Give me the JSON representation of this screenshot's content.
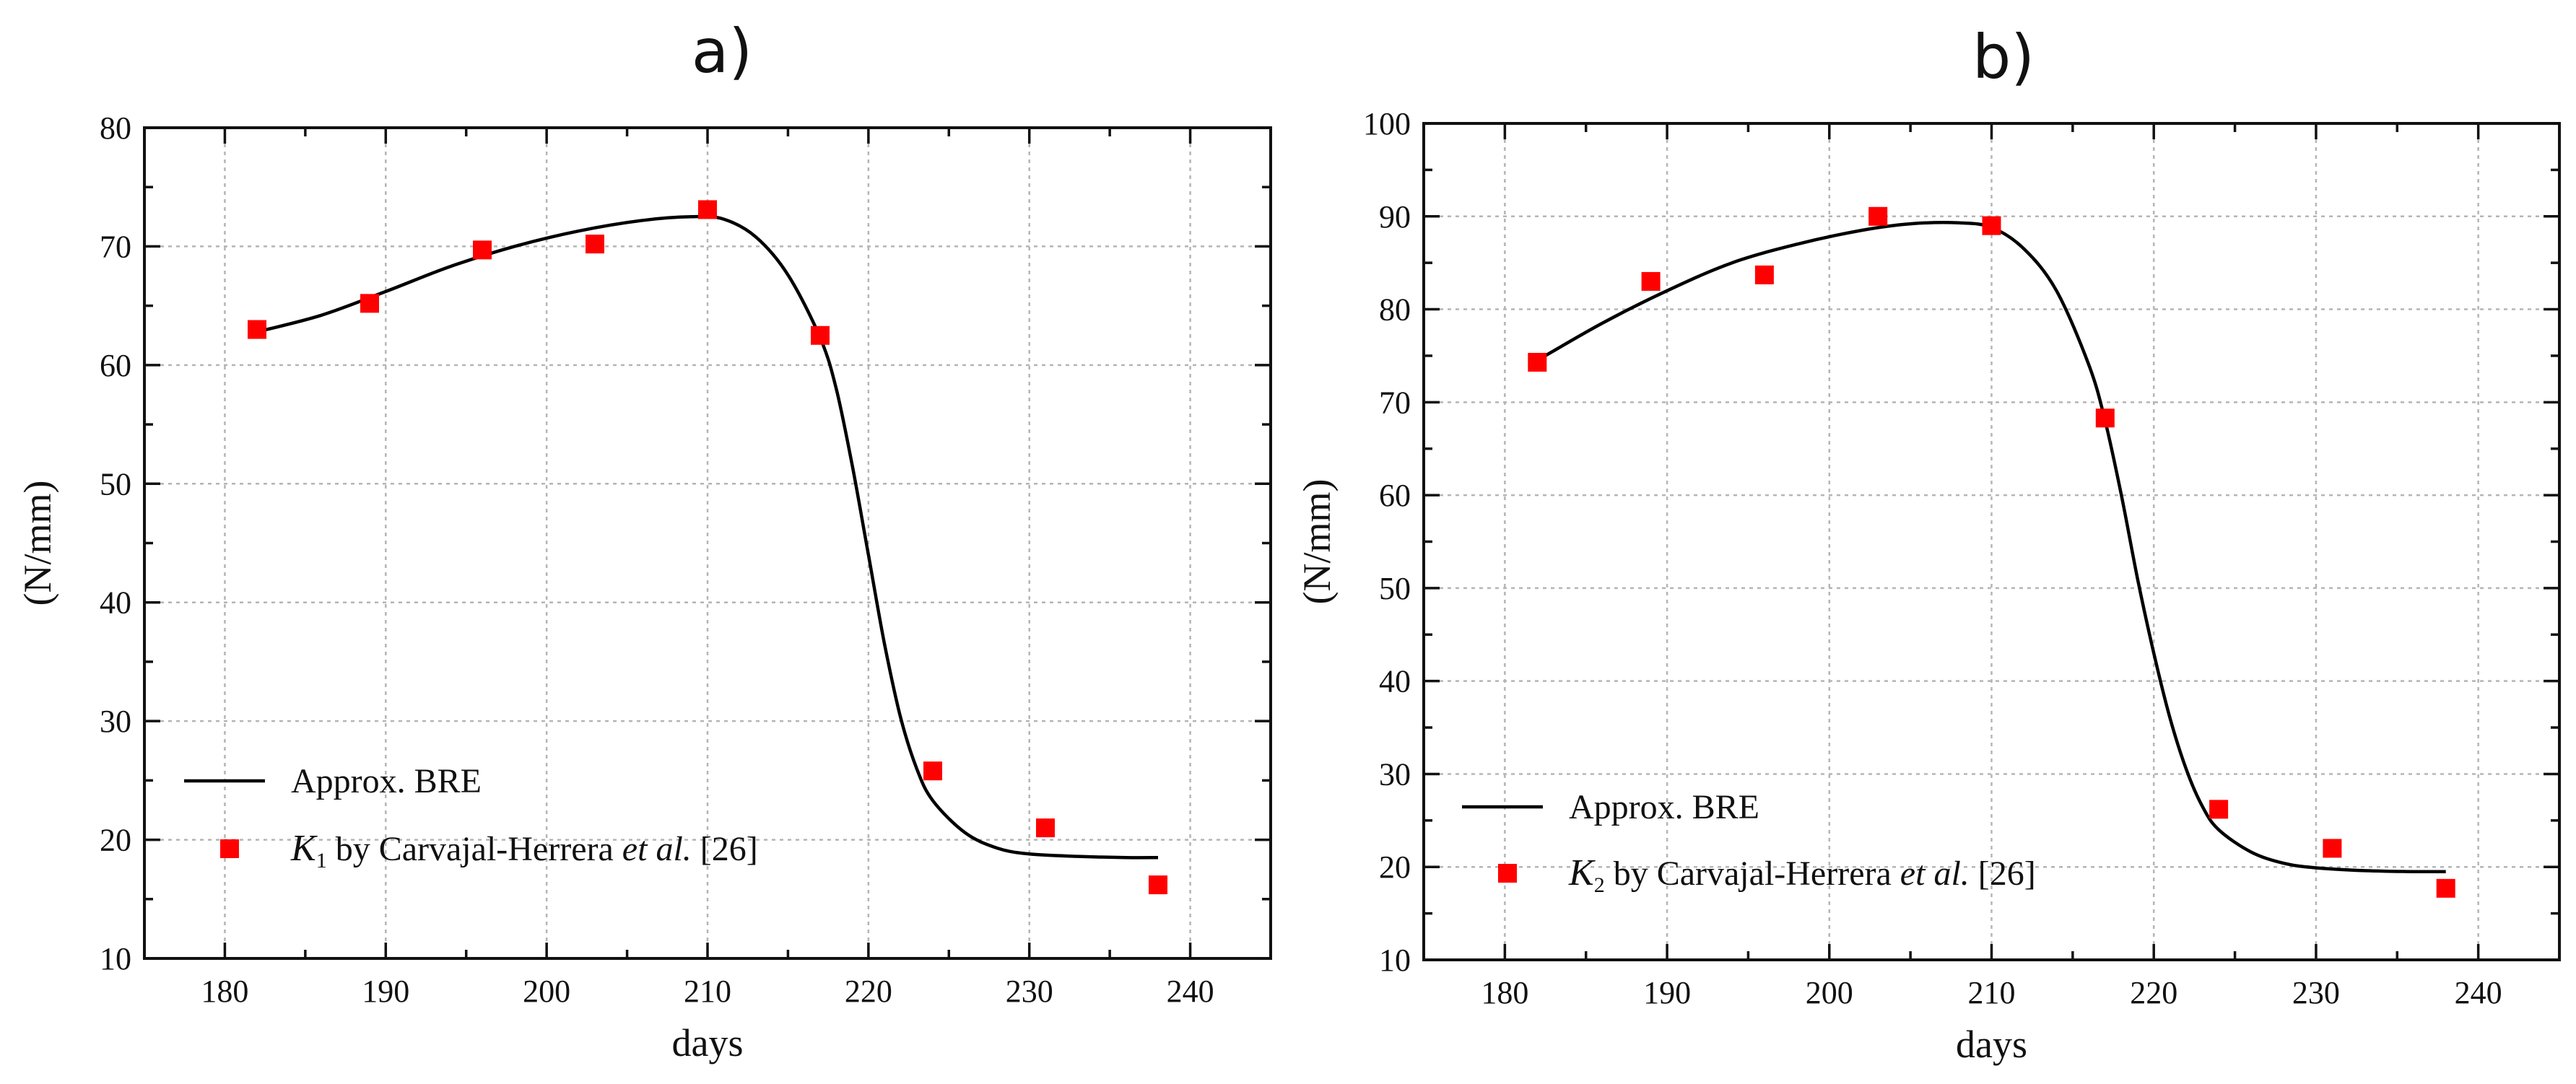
{
  "colors": {
    "marker": "#ff0000",
    "line": "#000000",
    "grid": "#b5b5b5"
  },
  "chart_data": [
    {
      "panel_label": "a)",
      "type": "line+scatter",
      "xlabel": "days",
      "ylabel": "(N/mm)",
      "xlim": [
        175,
        245
      ],
      "ylim": [
        10,
        80
      ],
      "x_ticks": [
        180,
        190,
        200,
        210,
        220,
        230,
        240
      ],
      "x_tick_labels": [
        "180",
        "190",
        "200",
        "210",
        "220",
        "230",
        "240"
      ],
      "y_ticks": [
        10,
        20,
        30,
        40,
        50,
        60,
        70,
        80
      ],
      "y_tick_labels": [
        "10",
        "20",
        "30",
        "40",
        "50",
        "60",
        "70",
        "80"
      ],
      "grid": true,
      "legend_position": "bottom-left",
      "series": [
        {
          "name": "Approx. BRE",
          "kind": "line",
          "x": [
            182,
            186,
            190,
            194,
            198,
            202,
            206,
            209,
            211,
            213,
            215,
            217,
            218,
            219,
            220,
            221,
            222,
            223,
            224,
            226,
            228,
            230,
            233,
            236,
            238
          ],
          "y": [
            62.8,
            64.2,
            66.2,
            68.3,
            70.0,
            71.3,
            72.2,
            72.5,
            72.3,
            70.8,
            67.6,
            62.3,
            58.0,
            51.5,
            44.0,
            36.5,
            30.3,
            26.0,
            23.3,
            20.6,
            19.3,
            18.8,
            18.6,
            18.5,
            18.5
          ]
        },
        {
          "name": "K1 by Carvajal-Herrera et al. [26]",
          "kind": "scatter",
          "x": [
            182,
            189,
            196,
            203,
            210,
            217,
            224,
            231,
            238
          ],
          "y": [
            63.0,
            65.2,
            69.7,
            70.2,
            73.1,
            62.5,
            25.8,
            21.0,
            16.2
          ]
        }
      ],
      "legend": {
        "line_label": "Approx. BRE",
        "marker_symbol": "K",
        "marker_subscript": "1",
        "marker_text_pre": " by Carvajal-Herrera ",
        "marker_text_ital": "et al.",
        "marker_text_post": " [26]"
      }
    },
    {
      "panel_label": "b)",
      "type": "line+scatter",
      "xlabel": "days",
      "ylabel": "(N/mm)",
      "xlim": [
        175,
        245
      ],
      "ylim": [
        10,
        100
      ],
      "x_ticks": [
        180,
        190,
        200,
        210,
        220,
        230,
        240
      ],
      "x_tick_labels": [
        "180",
        "190",
        "200",
        "210",
        "220",
        "230",
        "240"
      ],
      "y_ticks": [
        10,
        20,
        30,
        40,
        50,
        60,
        70,
        80,
        90,
        100
      ],
      "y_tick_labels": [
        "10",
        "20",
        "30",
        "40",
        "50",
        "60",
        "70",
        "80",
        "90",
        "100"
      ],
      "grid": true,
      "legend_position": "bottom-left",
      "series": [
        {
          "name": "Approx. BRE",
          "kind": "line",
          "x": [
            182,
            186,
            190,
            194,
            198,
            202,
            205,
            208,
            210,
            212,
            214,
            216,
            217,
            218,
            219,
            220,
            221,
            222,
            223,
            224,
            226,
            228,
            230,
            233,
            236,
            238
          ],
          "y": [
            74.5,
            78.5,
            82.0,
            85.0,
            87.0,
            88.5,
            89.2,
            89.3,
            88.8,
            86.5,
            82.0,
            74.0,
            68.0,
            60.0,
            51.0,
            43.0,
            36.0,
            30.5,
            26.5,
            24.0,
            21.6,
            20.4,
            19.9,
            19.6,
            19.5,
            19.5
          ]
        },
        {
          "name": "K2 by Carvajal-Herrera et al. [26]",
          "kind": "scatter",
          "x": [
            182,
            189,
            196,
            203,
            210,
            217,
            224,
            231,
            238
          ],
          "y": [
            74.3,
            83.0,
            83.7,
            90.0,
            89.0,
            68.3,
            26.2,
            22.0,
            17.7
          ]
        }
      ],
      "legend": {
        "line_label": "Approx. BRE",
        "marker_symbol": "K",
        "marker_subscript": "2",
        "marker_text_pre": " by Carvajal-Herrera ",
        "marker_text_ital": "et al.",
        "marker_text_post": " [26]"
      }
    }
  ]
}
